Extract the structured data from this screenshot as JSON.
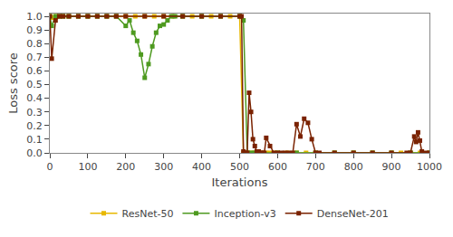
{
  "chart_data": {
    "type": "line",
    "xlabel": "Iterations",
    "ylabel": "Loss score",
    "xlim": [
      0,
      1000
    ],
    "ylim": [
      0,
      1.02
    ],
    "xticks": [
      0,
      100,
      200,
      300,
      400,
      500,
      600,
      700,
      800,
      900,
      1000
    ],
    "yticks": [
      {
        "value": 0,
        "label": "0.0"
      },
      0.1,
      0.2,
      0.3,
      0.4,
      0.5,
      0.6,
      0.7,
      0.8,
      0.9,
      {
        "value": 1,
        "label": "1.0"
      }
    ],
    "grid": false,
    "legend": "bottom",
    "marker": "square",
    "line_style": "solid",
    "series": [
      {
        "name": "ResNet-50",
        "color": "#e8b800",
        "x": [
          0,
          5,
          15,
          25,
          35,
          50,
          75,
          100,
          125,
          150,
          175,
          200,
          225,
          250,
          275,
          300,
          325,
          350,
          375,
          400,
          425,
          450,
          475,
          500,
          510,
          520,
          530,
          540,
          550,
          560,
          570,
          580,
          590,
          600,
          625,
          650,
          675,
          700,
          750,
          800,
          850,
          900,
          925,
          950,
          975,
          1000
        ],
        "values": [
          1.0,
          0.99,
          1.0,
          1.0,
          1.0,
          1.0,
          1.0,
          1.0,
          1.0,
          1.0,
          1.0,
          1.0,
          1.0,
          1.0,
          1.0,
          1.0,
          1.0,
          1.0,
          1.0,
          1.0,
          1.0,
          1.0,
          1.0,
          1.0,
          0.0,
          0.0,
          0.0,
          0.0,
          0.0,
          0.0,
          0.0,
          0.0,
          0.0,
          0.0,
          0.0,
          0.0,
          0.0,
          0.0,
          0.0,
          0.0,
          0.0,
          0.0,
          0.0,
          0.0,
          0.0,
          0.0
        ]
      },
      {
        "name": "Inception-v3",
        "color": "#4e9a20",
        "x": [
          0,
          5,
          15,
          25,
          35,
          50,
          75,
          100,
          125,
          150,
          175,
          200,
          210,
          220,
          230,
          240,
          250,
          260,
          270,
          280,
          290,
          300,
          310,
          320,
          330,
          350,
          400,
          450,
          500,
          510,
          520,
          530,
          540,
          550,
          600,
          650,
          700,
          750,
          800,
          850,
          900,
          950,
          1000
        ],
        "values": [
          1.0,
          0.93,
          1.0,
          1.0,
          1.0,
          1.0,
          1.0,
          1.0,
          1.0,
          1.0,
          1.0,
          0.93,
          0.97,
          0.88,
          0.82,
          0.72,
          0.55,
          0.65,
          0.78,
          0.88,
          0.93,
          0.94,
          0.97,
          1.0,
          1.0,
          1.0,
          1.0,
          1.0,
          1.0,
          0.97,
          0.0,
          0.0,
          0.0,
          0.0,
          0.0,
          0.0,
          0.0,
          0.0,
          0.0,
          0.0,
          0.0,
          0.0,
          0.0
        ]
      },
      {
        "name": "DenseNet-201",
        "color": "#7a2200",
        "x": [
          0,
          5,
          15,
          25,
          35,
          50,
          75,
          100,
          125,
          150,
          175,
          200,
          250,
          300,
          350,
          400,
          450,
          500,
          505,
          510,
          515,
          520,
          525,
          530,
          535,
          540,
          545,
          550,
          555,
          560,
          565,
          570,
          580,
          590,
          600,
          610,
          620,
          630,
          640,
          650,
          660,
          670,
          680,
          690,
          700,
          710,
          750,
          800,
          850,
          900,
          940,
          950,
          960,
          965,
          970,
          975,
          980,
          990,
          1000
        ],
        "values": [
          1.0,
          0.69,
          0.97,
          1.0,
          1.0,
          1.0,
          1.0,
          1.0,
          1.0,
          1.0,
          1.0,
          1.0,
          1.0,
          1.0,
          1.0,
          1.0,
          1.0,
          1.0,
          1.0,
          0.01,
          0.0,
          0.0,
          0.44,
          0.3,
          0.1,
          0.05,
          0.01,
          0.01,
          0.0,
          0.0,
          0.0,
          0.11,
          0.05,
          0.0,
          0.0,
          0.0,
          0.0,
          0.0,
          0.0,
          0.21,
          0.12,
          0.25,
          0.22,
          0.1,
          0.0,
          0.0,
          0.0,
          0.0,
          0.0,
          0.0,
          0.0,
          0.0,
          0.12,
          0.08,
          0.15,
          0.09,
          0.01,
          0.0,
          0.0
        ]
      }
    ]
  }
}
